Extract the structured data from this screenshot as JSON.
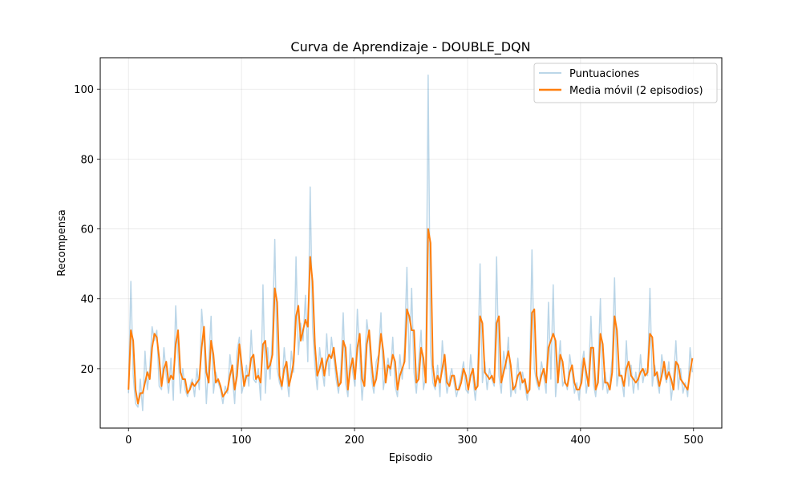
{
  "chart_data": {
    "type": "line",
    "title": "Curva de Aprendizaje - DOUBLE_DQN",
    "xlabel": "Episodio",
    "ylabel": "Recompensa",
    "xlim": [
      -25,
      525
    ],
    "ylim": [
      3,
      109
    ],
    "xticks": [
      0,
      100,
      200,
      300,
      400,
      500
    ],
    "yticks": [
      20,
      40,
      60,
      80,
      100
    ],
    "grid": true,
    "legend_position": "top-right",
    "series": [
      {
        "name": "Puntuaciones",
        "color": "#1f77b4",
        "alpha": 0.3,
        "x_start": 0,
        "values": [
          13,
          45,
          18,
          10,
          9,
          17,
          8,
          25,
          14,
          20,
          32,
          28,
          31,
          15,
          14,
          26,
          18,
          13,
          23,
          11,
          38,
          24,
          13,
          20,
          14,
          12,
          15,
          17,
          12,
          20,
          14,
          37,
          28,
          10,
          22,
          35,
          13,
          19,
          16,
          14,
          10,
          15,
          13,
          24,
          18,
          10,
          25,
          29,
          13,
          16,
          21,
          15,
          31,
          17,
          16,
          20,
          11,
          44,
          13,
          26,
          17,
          30,
          57,
          20,
          16,
          14,
          26,
          18,
          12,
          25,
          19,
          52,
          24,
          33,
          28,
          41,
          22,
          72,
          32,
          21,
          14,
          26,
          20,
          15,
          30,
          18,
          29,
          23,
          17,
          13,
          20,
          36,
          16,
          12,
          27,
          19,
          15,
          37,
          23,
          11,
          20,
          34,
          28,
          17,
          13,
          22,
          24,
          36,
          14,
          19,
          23,
          18,
          29,
          15,
          12,
          24,
          17,
          26,
          49,
          20,
          43,
          19,
          13,
          22,
          31,
          14,
          18,
          104,
          25,
          16,
          14,
          21,
          12,
          28,
          19,
          13,
          17,
          20,
          16,
          12,
          15,
          18,
          22,
          14,
          13,
          24,
          17,
          11,
          19,
          50,
          16,
          22,
          14,
          20,
          17,
          15,
          52,
          18,
          13,
          25,
          20,
          29,
          12,
          16,
          13,
          23,
          14,
          19,
          15,
          11,
          17,
          54,
          20,
          16,
          14,
          22,
          18,
          13,
          39,
          17,
          44,
          12,
          20,
          28,
          15,
          17,
          14,
          24,
          19,
          13,
          16,
          11,
          21,
          25,
          13,
          18,
          35,
          16,
          12,
          20,
          40,
          14,
          19,
          13,
          16,
          23,
          46,
          15,
          20,
          17,
          12,
          28,
          15,
          21,
          13,
          19,
          14,
          24,
          16,
          20,
          18,
          43,
          15,
          21,
          17,
          13,
          24,
          19,
          16,
          22,
          11,
          17,
          28,
          14,
          20,
          13,
          16,
          12,
          26,
          19
        ]
      },
      {
        "name": "Media móvil (2 episodios)",
        "color": "#ff7f0e",
        "x_start": 0,
        "values": [
          14,
          31,
          28,
          14,
          10,
          13,
          13,
          16,
          19,
          17,
          26,
          30,
          29,
          23,
          15,
          20,
          22,
          16,
          18,
          17,
          27,
          31,
          19,
          17,
          17,
          13,
          14,
          16,
          15,
          16,
          17,
          26,
          32,
          19,
          16,
          28,
          24,
          16,
          17,
          15,
          12,
          13,
          14,
          18,
          21,
          14,
          18,
          27,
          21,
          15,
          18,
          18,
          23,
          24,
          17,
          18,
          16,
          27,
          28,
          20,
          21,
          24,
          43,
          39,
          18,
          15,
          20,
          22,
          15,
          18,
          22,
          35,
          38,
          28,
          31,
          34,
          32,
          52,
          45,
          27,
          18,
          20,
          23,
          18,
          22,
          24,
          23,
          26,
          20,
          15,
          16,
          28,
          26,
          14,
          20,
          23,
          17,
          26,
          30,
          17,
          15,
          27,
          31,
          22,
          15,
          17,
          23,
          30,
          25,
          16,
          21,
          20,
          24,
          22,
          14,
          18,
          20,
          22,
          37,
          35,
          31,
          31,
          16,
          17,
          26,
          23,
          16,
          60,
          56,
          21,
          15,
          18,
          16,
          20,
          24,
          16,
          15,
          18,
          18,
          14,
          14,
          16,
          20,
          18,
          14,
          18,
          20,
          14,
          15,
          35,
          33,
          19,
          18,
          17,
          18,
          16,
          33,
          35,
          16,
          19,
          22,
          25,
          21,
          14,
          15,
          18,
          19,
          16,
          17,
          13,
          14,
          36,
          37,
          18,
          15,
          18,
          20,
          16,
          26,
          28,
          30,
          28,
          16,
          24,
          22,
          16,
          15,
          19,
          21,
          16,
          14,
          14,
          16,
          23,
          19,
          15,
          26,
          26,
          14,
          16,
          30,
          27,
          16,
          16,
          14,
          19,
          35,
          31,
          18,
          18,
          15,
          20,
          22,
          18,
          17,
          16,
          17,
          19,
          20,
          18,
          19,
          30,
          29,
          18,
          19,
          15,
          18,
          22,
          17,
          19,
          17,
          14,
          22,
          21,
          17,
          16,
          15,
          14,
          19,
          23
        ]
      }
    ]
  }
}
